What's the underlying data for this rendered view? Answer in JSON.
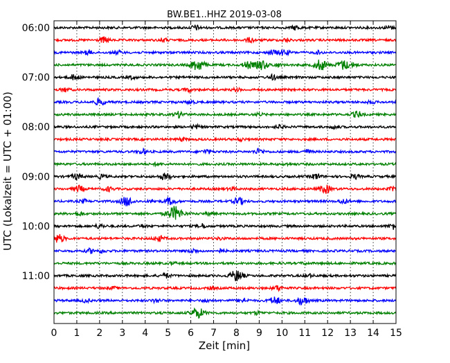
{
  "chart_data": {
    "type": "line",
    "title": "BW.BE1..HHZ 2019-03-08",
    "xlabel": "Zeit  [min]",
    "ylabel": "UTC (Lokalzeit = UTC + 01:00)",
    "xlim": [
      0,
      15
    ],
    "x_ticks": [
      "0",
      "1",
      "2",
      "3",
      "4",
      "5",
      "6",
      "7",
      "8",
      "9",
      "10",
      "11",
      "12",
      "13",
      "14",
      "15"
    ],
    "y_ticks": [
      "06:00",
      "07:00",
      "08:00",
      "09:00",
      "10:00",
      "11:00"
    ],
    "grid": "vertical dotted",
    "color_cycle": [
      "#000000",
      "#ff0000",
      "#0000ff",
      "#008000"
    ],
    "trace_interval_min": 15,
    "series": [
      {
        "start": "06:00",
        "events": [
          [
            6.2,
            1.0
          ],
          [
            10.6,
            0.9
          ],
          [
            14.7,
            0.8
          ]
        ]
      },
      {
        "start": "06:15",
        "events": [
          [
            2.2,
            1.2
          ],
          [
            4.8,
            0.8
          ],
          [
            8.6,
            1.0
          ],
          [
            10.2,
            0.7
          ]
        ]
      },
      {
        "start": "06:30",
        "events": [
          [
            1.5,
            0.9
          ],
          [
            2.8,
            0.7
          ],
          [
            9.6,
            1.0
          ],
          [
            10.0,
            0.8
          ],
          [
            10.2,
            0.6
          ],
          [
            11.6,
            0.6
          ]
        ]
      },
      {
        "start": "06:45",
        "events": [
          [
            6.3,
            2.5
          ],
          [
            8.5,
            1.5
          ],
          [
            9.1,
            2.0
          ],
          [
            11.7,
            2.2
          ],
          [
            12.7,
            2.0
          ],
          [
            9.8,
            0.8
          ],
          [
            13.2,
            0.7
          ]
        ]
      },
      {
        "start": "07:00",
        "events": [
          [
            0.9,
            1.2
          ],
          [
            9.6,
            1.0
          ],
          [
            3.4,
            0.6
          ]
        ]
      },
      {
        "start": "07:15",
        "events": [
          [
            0.5,
            0.8
          ],
          [
            5.9,
            0.8
          ],
          [
            8.0,
            0.6
          ]
        ]
      },
      {
        "start": "07:30",
        "events": [
          [
            2.0,
            1.4
          ],
          [
            6.0,
            0.7
          ],
          [
            13.9,
            0.6
          ]
        ]
      },
      {
        "start": "07:45",
        "events": [
          [
            5.5,
            1.2
          ],
          [
            13.3,
            1.3
          ],
          [
            9.0,
            0.5
          ]
        ]
      },
      {
        "start": "08:00",
        "events": [
          [
            6.2,
            0.8
          ],
          [
            9.9,
            0.8
          ],
          [
            12.3,
            0.7
          ]
        ]
      },
      {
        "start": "08:15",
        "events": [
          [
            5.6,
            0.6
          ],
          [
            8.2,
            0.5
          ]
        ]
      },
      {
        "start": "08:30",
        "events": [
          [
            3.9,
            1.0
          ],
          [
            6.7,
            0.9
          ],
          [
            9.0,
            1.2
          ],
          [
            11.1,
            0.9
          ]
        ]
      },
      {
        "start": "08:45",
        "events": [
          [
            4.5,
            0.4
          ],
          [
            10.2,
            0.4
          ]
        ]
      },
      {
        "start": "09:00",
        "events": [
          [
            1.0,
            1.3
          ],
          [
            4.9,
            1.5
          ],
          [
            11.5,
            1.2
          ],
          [
            13.2,
            0.9
          ],
          [
            2.1,
            0.8
          ]
        ]
      },
      {
        "start": "09:15",
        "events": [
          [
            1.1,
            1.3
          ],
          [
            2.4,
            0.9
          ],
          [
            11.9,
            1.8
          ],
          [
            14.9,
            0.9
          ],
          [
            7.8,
            0.7
          ]
        ]
      },
      {
        "start": "09:30",
        "events": [
          [
            3.2,
            2.0
          ],
          [
            5.1,
            1.5
          ],
          [
            8.1,
            1.5
          ],
          [
            12.7,
            1.0
          ],
          [
            1.3,
            0.7
          ],
          [
            4.3,
            0.6
          ]
        ]
      },
      {
        "start": "09:45",
        "events": [
          [
            5.3,
            3.0
          ],
          [
            1.1,
            0.8
          ],
          [
            6.8,
            0.7
          ]
        ]
      },
      {
        "start": "10:00",
        "events": [
          [
            2.0,
            0.9
          ],
          [
            6.5,
            0.9
          ],
          [
            14.9,
            1.2
          ],
          [
            3.9,
            0.6
          ]
        ]
      },
      {
        "start": "10:15",
        "events": [
          [
            0.2,
            1.8
          ],
          [
            4.6,
            1.2
          ],
          [
            7.3,
            0.5
          ]
        ]
      },
      {
        "start": "10:30",
        "events": [
          [
            1.6,
            0.9
          ],
          [
            2.1,
            0.7
          ],
          [
            6.1,
            0.9
          ],
          [
            7.3,
            0.7
          ]
        ]
      },
      {
        "start": "10:45",
        "events": [
          [
            5.2,
            0.5
          ],
          [
            11.0,
            0.4
          ]
        ]
      },
      {
        "start": "11:00",
        "events": [
          [
            8.0,
            2.3
          ],
          [
            4.9,
            1.0
          ],
          [
            11.2,
            0.6
          ]
        ]
      },
      {
        "start": "11:15",
        "events": [
          [
            9.8,
            1.0
          ],
          [
            2.6,
            0.5
          ],
          [
            6.9,
            0.5
          ]
        ]
      },
      {
        "start": "11:30",
        "events": [
          [
            9.7,
            1.6
          ],
          [
            10.9,
            1.8
          ],
          [
            8.3,
            0.9
          ],
          [
            4.5,
            0.8
          ],
          [
            1.4,
            0.7
          ],
          [
            6.7,
            0.7
          ]
        ]
      },
      {
        "start": "11:45",
        "events": [
          [
            6.3,
            2.2
          ],
          [
            8.9,
            0.6
          ]
        ]
      }
    ]
  }
}
